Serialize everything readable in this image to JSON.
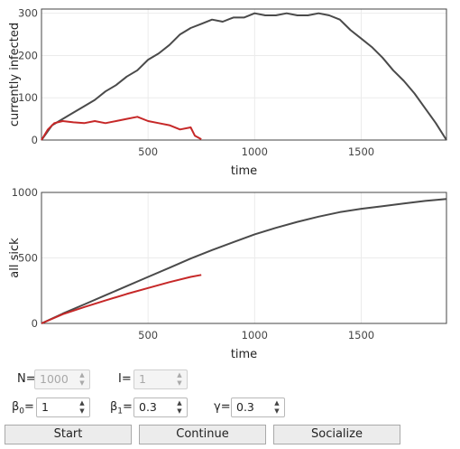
{
  "chart_data": [
    {
      "type": "line",
      "xlabel": "time",
      "ylabel": "currently infected",
      "xlim": [
        0,
        1900
      ],
      "ylim": [
        0,
        310
      ],
      "xticks": [
        500,
        1000,
        1500
      ],
      "yticks": [
        0,
        100,
        200,
        300
      ],
      "grid": true,
      "series": [
        {
          "color": "#4a4a4a",
          "x": [
            0,
            50,
            100,
            150,
            200,
            250,
            300,
            350,
            400,
            450,
            500,
            550,
            600,
            650,
            700,
            750,
            800,
            850,
            900,
            950,
            1000,
            1050,
            1100,
            1150,
            1200,
            1250,
            1300,
            1350,
            1400,
            1450,
            1500,
            1550,
            1600,
            1650,
            1700,
            1750,
            1800,
            1850,
            1900
          ],
          "y": [
            0,
            35,
            50,
            65,
            80,
            95,
            115,
            130,
            150,
            165,
            190,
            205,
            225,
            250,
            265,
            275,
            285,
            280,
            290,
            290,
            300,
            295,
            295,
            300,
            295,
            295,
            300,
            295,
            285,
            260,
            240,
            220,
            195,
            165,
            140,
            110,
            75,
            40,
            0
          ]
        },
        {
          "color": "#c62828",
          "x": [
            0,
            30,
            60,
            100,
            150,
            200,
            250,
            300,
            350,
            400,
            450,
            500,
            550,
            600,
            650,
            700,
            720,
            750
          ],
          "y": [
            0,
            25,
            40,
            45,
            42,
            40,
            45,
            40,
            45,
            50,
            55,
            45,
            40,
            35,
            25,
            30,
            10,
            2
          ]
        }
      ]
    },
    {
      "type": "line",
      "xlabel": "time",
      "ylabel": "all sick",
      "xlim": [
        0,
        1900
      ],
      "ylim": [
        0,
        1000
      ],
      "xticks": [
        500,
        1000,
        1500
      ],
      "yticks": [
        0,
        500,
        1000
      ],
      "grid": true,
      "series": [
        {
          "color": "#4a4a4a",
          "x": [
            0,
            100,
            200,
            300,
            400,
            500,
            600,
            700,
            800,
            900,
            1000,
            1100,
            1200,
            1300,
            1400,
            1500,
            1600,
            1700,
            1800,
            1900
          ],
          "y": [
            0,
            75,
            145,
            215,
            285,
            355,
            425,
            495,
            560,
            620,
            680,
            730,
            775,
            815,
            850,
            875,
            895,
            915,
            935,
            950
          ]
        },
        {
          "color": "#c62828",
          "x": [
            0,
            100,
            200,
            300,
            400,
            500,
            600,
            700,
            750
          ],
          "y": [
            0,
            70,
            125,
            175,
            225,
            270,
            315,
            355,
            370
          ]
        }
      ]
    }
  ],
  "controls": {
    "n_label": "N=",
    "n_value": "1000",
    "i_label": "I=",
    "i_value": "1",
    "beta0_base": "β",
    "beta0_sub": "0",
    "beta0_eq": "=",
    "beta0_value": "1",
    "beta1_base": "β",
    "beta1_sub": "1",
    "beta1_eq": "=",
    "beta1_value": "0.3",
    "gamma_label": "γ=",
    "gamma_value": "0.3",
    "spin_up": "▲",
    "spin_down": "▼"
  },
  "buttons": {
    "start": "Start",
    "continue": "Continue",
    "socialize": "Socialize"
  }
}
